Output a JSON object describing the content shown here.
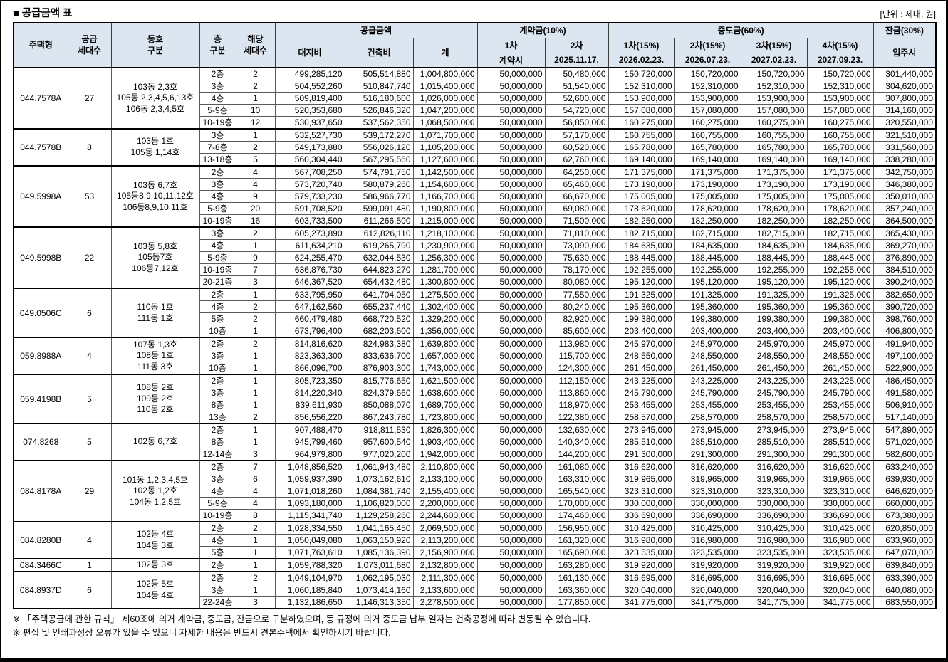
{
  "title": "■ 공급금액 표",
  "unit_note": "[단위 : 세대, 원]",
  "colors": {
    "header_bg": "#dce6f1",
    "grid_line": "#5a5a5a",
    "strong_line": "#000000"
  },
  "header": {
    "housing_type": "주택형",
    "supply_count": "공급\n세대수",
    "building_unit": "동호\n구분",
    "floor": "층\n구분",
    "unit_count": "해당\n세대수",
    "supply_amount": "공급금액",
    "land_cost": "대지비",
    "construction_cost": "건축비",
    "total": "계",
    "down_payment": "계약금(10%)",
    "down1": "1차",
    "down1_date": "계약시",
    "down2": "2차",
    "down2_date": "2025.11.17.",
    "interim": "중도금(60%)",
    "interim1": "1차(15%)",
    "interim1_date": "2026.02.23.",
    "interim2": "2차(15%)",
    "interim2_date": "2026.07.23.",
    "interim3": "3차(15%)",
    "interim3_date": "2027.02.23.",
    "interim4": "4차(15%)",
    "interim4_date": "2027.09.23.",
    "balance": "잔금(30%)",
    "balance_date": "입주시"
  },
  "groups": [
    {
      "type": "044.7578A",
      "units": "27",
      "building": "103동 2,3호\n105동 2,3,4,5,6,13호\n106동 2,3,4,5호",
      "rows": [
        {
          "floor": "2층",
          "count": "2",
          "land": "499,285,120",
          "bldg": "505,514,880",
          "total": "1,004,800,000",
          "down1": "50,000,000",
          "down2": "50,480,000",
          "interim": "150,720,000",
          "balance": "301,440,000"
        },
        {
          "floor": "3층",
          "count": "2",
          "land": "504,552,260",
          "bldg": "510,847,740",
          "total": "1,015,400,000",
          "down1": "50,000,000",
          "down2": "51,540,000",
          "interim": "152,310,000",
          "balance": "304,620,000"
        },
        {
          "floor": "4층",
          "count": "1",
          "land": "509,819,400",
          "bldg": "516,180,600",
          "total": "1,026,000,000",
          "down1": "50,000,000",
          "down2": "52,600,000",
          "interim": "153,900,000",
          "balance": "307,800,000"
        },
        {
          "floor": "5-9층",
          "count": "10",
          "land": "520,353,680",
          "bldg": "526,846,320",
          "total": "1,047,200,000",
          "down1": "50,000,000",
          "down2": "54,720,000",
          "interim": "157,080,000",
          "balance": "314,160,000"
        },
        {
          "floor": "10-19층",
          "count": "12",
          "land": "530,937,650",
          "bldg": "537,562,350",
          "total": "1,068,500,000",
          "down1": "50,000,000",
          "down2": "56,850,000",
          "interim": "160,275,000",
          "balance": "320,550,000"
        }
      ]
    },
    {
      "type": "044.7578B",
      "units": "8",
      "building": "103동 1호\n105동 1,14호",
      "rows": [
        {
          "floor": "3층",
          "count": "1",
          "land": "532,527,730",
          "bldg": "539,172,270",
          "total": "1,071,700,000",
          "down1": "50,000,000",
          "down2": "57,170,000",
          "interim": "160,755,000",
          "balance": "321,510,000"
        },
        {
          "floor": "7-8층",
          "count": "2",
          "land": "549,173,880",
          "bldg": "556,026,120",
          "total": "1,105,200,000",
          "down1": "50,000,000",
          "down2": "60,520,000",
          "interim": "165,780,000",
          "balance": "331,560,000"
        },
        {
          "floor": "13-18층",
          "count": "5",
          "land": "560,304,440",
          "bldg": "567,295,560",
          "total": "1,127,600,000",
          "down1": "50,000,000",
          "down2": "62,760,000",
          "interim": "169,140,000",
          "balance": "338,280,000"
        }
      ]
    },
    {
      "type": "049.5998A",
      "units": "53",
      "building": "103동 6,7호\n105동8,9,10,11,12호\n106동8,9,10,11호",
      "rows": [
        {
          "floor": "2층",
          "count": "4",
          "land": "567,708,250",
          "bldg": "574,791,750",
          "total": "1,142,500,000",
          "down1": "50,000,000",
          "down2": "64,250,000",
          "interim": "171,375,000",
          "balance": "342,750,000"
        },
        {
          "floor": "3층",
          "count": "4",
          "land": "573,720,740",
          "bldg": "580,879,260",
          "total": "1,154,600,000",
          "down1": "50,000,000",
          "down2": "65,460,000",
          "interim": "173,190,000",
          "balance": "346,380,000"
        },
        {
          "floor": "4층",
          "count": "9",
          "land": "579,733,230",
          "bldg": "586,966,770",
          "total": "1,166,700,000",
          "down1": "50,000,000",
          "down2": "66,670,000",
          "interim": "175,005,000",
          "balance": "350,010,000"
        },
        {
          "floor": "5-9층",
          "count": "20",
          "land": "591,708,520",
          "bldg": "599,091,480",
          "total": "1,190,800,000",
          "down1": "50,000,000",
          "down2": "69,080,000",
          "interim": "178,620,000",
          "balance": "357,240,000"
        },
        {
          "floor": "10-19층",
          "count": "16",
          "land": "603,733,500",
          "bldg": "611,266,500",
          "total": "1,215,000,000",
          "down1": "50,000,000",
          "down2": "71,500,000",
          "interim": "182,250,000",
          "balance": "364,500,000"
        }
      ]
    },
    {
      "type": "049.5998B",
      "units": "22",
      "building": "103동 5,8호\n105동7호\n106동7,12호",
      "rows": [
        {
          "floor": "3층",
          "count": "2",
          "land": "605,273,890",
          "bldg": "612,826,110",
          "total": "1,218,100,000",
          "down1": "50,000,000",
          "down2": "71,810,000",
          "interim": "182,715,000",
          "balance": "365,430,000"
        },
        {
          "floor": "4층",
          "count": "1",
          "land": "611,634,210",
          "bldg": "619,265,790",
          "total": "1,230,900,000",
          "down1": "50,000,000",
          "down2": "73,090,000",
          "interim": "184,635,000",
          "balance": "369,270,000"
        },
        {
          "floor": "5-9층",
          "count": "9",
          "land": "624,255,470",
          "bldg": "632,044,530",
          "total": "1,256,300,000",
          "down1": "50,000,000",
          "down2": "75,630,000",
          "interim": "188,445,000",
          "balance": "376,890,000"
        },
        {
          "floor": "10-19층",
          "count": "7",
          "land": "636,876,730",
          "bldg": "644,823,270",
          "total": "1,281,700,000",
          "down1": "50,000,000",
          "down2": "78,170,000",
          "interim": "192,255,000",
          "balance": "384,510,000"
        },
        {
          "floor": "20-21층",
          "count": "3",
          "land": "646,367,520",
          "bldg": "654,432,480",
          "total": "1,300,800,000",
          "down1": "50,000,000",
          "down2": "80,080,000",
          "interim": "195,120,000",
          "balance": "390,240,000"
        }
      ]
    },
    {
      "type": "049.0506C",
      "units": "6",
      "building": "110동 1호\n111동 1호",
      "rows": [
        {
          "floor": "2층",
          "count": "1",
          "land": "633,795,950",
          "bldg": "641,704,050",
          "total": "1,275,500,000",
          "down1": "50,000,000",
          "down2": "77,550,000",
          "interim": "191,325,000",
          "balance": "382,650,000"
        },
        {
          "floor": "4층",
          "count": "2",
          "land": "647,162,560",
          "bldg": "655,237,440",
          "total": "1,302,400,000",
          "down1": "50,000,000",
          "down2": "80,240,000",
          "interim": "195,360,000",
          "balance": "390,720,000"
        },
        {
          "floor": "5층",
          "count": "2",
          "land": "660,479,480",
          "bldg": "668,720,520",
          "total": "1,329,200,000",
          "down1": "50,000,000",
          "down2": "82,920,000",
          "interim": "199,380,000",
          "balance": "398,760,000"
        },
        {
          "floor": "10층",
          "count": "1",
          "land": "673,796,400",
          "bldg": "682,203,600",
          "total": "1,356,000,000",
          "down1": "50,000,000",
          "down2": "85,600,000",
          "interim": "203,400,000",
          "balance": "406,800,000"
        }
      ]
    },
    {
      "type": "059.8988A",
      "units": "4",
      "building": "107동 1,3호\n108동 1호\n111동 3호",
      "rows": [
        {
          "floor": "2층",
          "count": "2",
          "land": "814,816,620",
          "bldg": "824,983,380",
          "total": "1,639,800,000",
          "down1": "50,000,000",
          "down2": "113,980,000",
          "interim": "245,970,000",
          "balance": "491,940,000"
        },
        {
          "floor": "3층",
          "count": "1",
          "land": "823,363,300",
          "bldg": "833,636,700",
          "total": "1,657,000,000",
          "down1": "50,000,000",
          "down2": "115,700,000",
          "interim": "248,550,000",
          "balance": "497,100,000"
        },
        {
          "floor": "10층",
          "count": "1",
          "land": "866,096,700",
          "bldg": "876,903,300",
          "total": "1,743,000,000",
          "down1": "50,000,000",
          "down2": "124,300,000",
          "interim": "261,450,000",
          "balance": "522,900,000"
        }
      ]
    },
    {
      "type": "059.4198B",
      "units": "5",
      "building": "108동 2호\n109동 2호\n110동 2호",
      "rows": [
        {
          "floor": "2층",
          "count": "1",
          "land": "805,723,350",
          "bldg": "815,776,650",
          "total": "1,621,500,000",
          "down1": "50,000,000",
          "down2": "112,150,000",
          "interim": "243,225,000",
          "balance": "486,450,000"
        },
        {
          "floor": "3층",
          "count": "1",
          "land": "814,220,340",
          "bldg": "824,379,660",
          "total": "1,638,600,000",
          "down1": "50,000,000",
          "down2": "113,860,000",
          "interim": "245,790,000",
          "balance": "491,580,000"
        },
        {
          "floor": "8층",
          "count": "1",
          "land": "839,611,930",
          "bldg": "850,088,070",
          "total": "1,689,700,000",
          "down1": "50,000,000",
          "down2": "118,970,000",
          "interim": "253,455,000",
          "balance": "506,910,000"
        },
        {
          "floor": "13층",
          "count": "2",
          "land": "856,556,220",
          "bldg": "867,243,780",
          "total": "1,723,800,000",
          "down1": "50,000,000",
          "down2": "122,380,000",
          "interim": "258,570,000",
          "balance": "517,140,000"
        }
      ]
    },
    {
      "type": "074.8268",
      "units": "5",
      "building": "102동 6,7호",
      "rows": [
        {
          "floor": "2층",
          "count": "1",
          "land": "907,488,470",
          "bldg": "918,811,530",
          "total": "1,826,300,000",
          "down1": "50,000,000",
          "down2": "132,630,000",
          "interim": "273,945,000",
          "balance": "547,890,000"
        },
        {
          "floor": "8층",
          "count": "1",
          "land": "945,799,460",
          "bldg": "957,600,540",
          "total": "1,903,400,000",
          "down1": "50,000,000",
          "down2": "140,340,000",
          "interim": "285,510,000",
          "balance": "571,020,000"
        },
        {
          "floor": "12-14층",
          "count": "3",
          "land": "964,979,800",
          "bldg": "977,020,200",
          "total": "1,942,000,000",
          "down1": "50,000,000",
          "down2": "144,200,000",
          "interim": "291,300,000",
          "balance": "582,600,000"
        }
      ]
    },
    {
      "type": "084.8178A",
      "units": "29",
      "building": "101동 1,2,3,4,5호\n102동 1,2호\n104동 1,2,5호",
      "rows": [
        {
          "floor": "2층",
          "count": "7",
          "land": "1,048,856,520",
          "bldg": "1,061,943,480",
          "total": "2,110,800,000",
          "down1": "50,000,000",
          "down2": "161,080,000",
          "interim": "316,620,000",
          "balance": "633,240,000"
        },
        {
          "floor": "3층",
          "count": "6",
          "land": "1,059,937,390",
          "bldg": "1,073,162,610",
          "total": "2,133,100,000",
          "down1": "50,000,000",
          "down2": "163,310,000",
          "interim": "319,965,000",
          "balance": "639,930,000"
        },
        {
          "floor": "4층",
          "count": "4",
          "land": "1,071,018,260",
          "bldg": "1,084,381,740",
          "total": "2,155,400,000",
          "down1": "50,000,000",
          "down2": "165,540,000",
          "interim": "323,310,000",
          "balance": "646,620,000"
        },
        {
          "floor": "5-9층",
          "count": "4",
          "land": "1,093,180,000",
          "bldg": "1,106,820,000",
          "total": "2,200,000,000",
          "down1": "50,000,000",
          "down2": "170,000,000",
          "interim": "330,000,000",
          "balance": "660,000,000"
        },
        {
          "floor": "10-19층",
          "count": "8",
          "land": "1,115,341,740",
          "bldg": "1,129,258,260",
          "total": "2,244,600,000",
          "down1": "50,000,000",
          "down2": "174,460,000",
          "interim": "336,690,000",
          "balance": "673,380,000"
        }
      ]
    },
    {
      "type": "084.8280B",
      "units": "4",
      "building": "102동 4호\n104동 3호",
      "rows": [
        {
          "floor": "2층",
          "count": "2",
          "land": "1,028,334,550",
          "bldg": "1,041,165,450",
          "total": "2,069,500,000",
          "down1": "50,000,000",
          "down2": "156,950,000",
          "interim": "310,425,000",
          "balance": "620,850,000"
        },
        {
          "floor": "4층",
          "count": "1",
          "land": "1,050,049,080",
          "bldg": "1,063,150,920",
          "total": "2,113,200,000",
          "down1": "50,000,000",
          "down2": "161,320,000",
          "interim": "316,980,000",
          "balance": "633,960,000"
        },
        {
          "floor": "5층",
          "count": "1",
          "land": "1,071,763,610",
          "bldg": "1,085,136,390",
          "total": "2,156,900,000",
          "down1": "50,000,000",
          "down2": "165,690,000",
          "interim": "323,535,000",
          "balance": "647,070,000"
        }
      ]
    },
    {
      "type": "084.3466C",
      "units": "1",
      "building": "102동 3호",
      "rows": [
        {
          "floor": "2층",
          "count": "1",
          "land": "1,059,788,320",
          "bldg": "1,073,011,680",
          "total": "2,132,800,000",
          "down1": "50,000,000",
          "down2": "163,280,000",
          "interim": "319,920,000",
          "balance": "639,840,000"
        }
      ]
    },
    {
      "type": "084.8937D",
      "units": "6",
      "building": "102동 5호\n104동 4호",
      "rows": [
        {
          "floor": "2층",
          "count": "2",
          "land": "1,049,104,970",
          "bldg": "1,062,195,030",
          "total": "2,111,300,000",
          "down1": "50,000,000",
          "down2": "161,130,000",
          "interim": "316,695,000",
          "balance": "633,390,000"
        },
        {
          "floor": "3층",
          "count": "1",
          "land": "1,060,185,840",
          "bldg": "1,073,414,160",
          "total": "2,133,600,000",
          "down1": "50,000,000",
          "down2": "163,360,000",
          "interim": "320,040,000",
          "balance": "640,080,000"
        },
        {
          "floor": "22-24층",
          "count": "3",
          "land": "1,132,186,650",
          "bldg": "1,146,313,350",
          "total": "2,278,500,000",
          "down1": "50,000,000",
          "down2": "177,850,000",
          "interim": "341,775,000",
          "balance": "683,550,000"
        }
      ]
    }
  ],
  "footnotes": [
    "※ 「주택공급에 관한 규칙」 제60조에 의거 계약금, 중도금, 잔금으로 구분하였으며, 동 규정에 의거 중도금 납부 일자는 건축공정에 따라 변동될 수 있습니다.",
    "※ 편집 및 인쇄과정상 오류가 있을 수 있으니 자세한 내용은 반드시 견본주택에서 확인하시기 바랍니다."
  ]
}
